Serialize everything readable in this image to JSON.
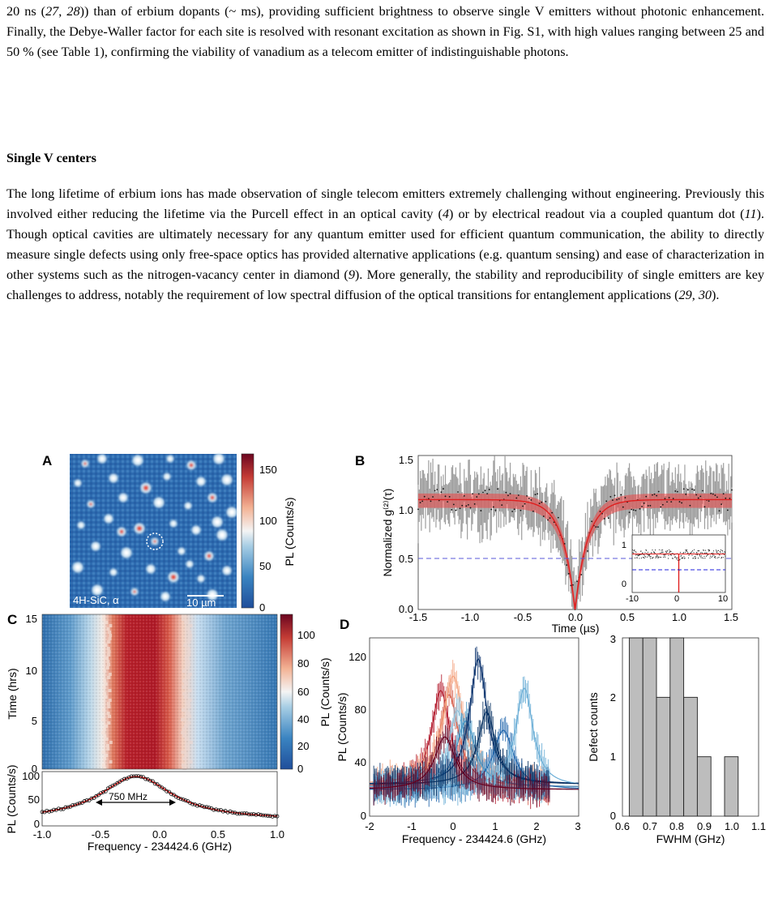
{
  "paragraph1": {
    "lines": [
      "20 ns (",
      "27",
      ", ",
      "28",
      ")) than of erbium dopants (~ ms), providing sufficient brightness to observe single V emitters without photonic enhancement. Finally, the Debye-Waller factor for each site is resolved with resonant excitation as shown in Fig. S1, with high values ranging between 25 and 50 % (see Table 1), confirming the viability of vanadium as a telecom emitter of indistinguishable photons."
    ]
  },
  "section_heading": "Single V centers",
  "paragraph2": {
    "p1": "The long lifetime of erbium ions has made observation of single telecom emitters extremely challenging without engineering. Previously this involved either reducing the lifetime via the Purcell effect in an optical cavity (",
    "c1": "4",
    "p2": ") or by electrical readout via a coupled quantum dot (",
    "c2": "11",
    "p3": "). Though optical cavities are ultimately necessary for any quantum emitter used for efficient quantum communication, the ability to directly measure single defects using only free-space optics has provided alternative applications (e.g. quantum sensing) and ease of characterization in other systems such as the nitrogen-vacancy center in diamond (",
    "c3": "9",
    "p4": "). More generally, the stability and reproducibility of single emitters are key challenges to address, notably the requirement of low spectral diffusion of the optical transitions for entanglement applications (",
    "c4": "29",
    "p5": ", ",
    "c5": "30",
    "p6": ")."
  },
  "figure": {
    "panelA": {
      "label": "A",
      "sample_label": "4H-SiC, α",
      "scalebar": "10 µm",
      "colorbar_ticks": [
        "150",
        "100",
        "50",
        "0"
      ],
      "colorbar_label": "PL (Counts/s)"
    },
    "panelB": {
      "label": "B",
      "ylabel": "Normalized g⁽²⁾(τ)",
      "xlabel": "Time (µs)",
      "xticks": [
        "-1.5",
        "-1.0",
        "-0.5",
        "0.0",
        "0.5",
        "1.0",
        "1.5"
      ],
      "yticks": [
        "0.0",
        "0.5",
        "1.0",
        "1.5"
      ],
      "inset_xticks": [
        "-10",
        "0",
        "10"
      ],
      "inset_yticks": [
        "0",
        "1"
      ]
    },
    "panelC": {
      "label": "C",
      "ylabel_top": "Time (hrs)",
      "yticks_top": [
        "15",
        "10",
        "5",
        "0"
      ],
      "colorbar_ticks": [
        "100",
        "80",
        "60",
        "40",
        "20",
        "0"
      ],
      "colorbar_label": "PL (Counts/s)",
      "ylabel_bottom": "PL (Counts/s)",
      "yticks_bottom": [
        "100",
        "50",
        "0"
      ],
      "xticks": [
        "-1.0",
        "-0.5",
        "0.0",
        "0.5",
        "1.0"
      ],
      "xlabel": "Frequency - 234424.6 (GHz)",
      "linewidth_label": "750 MHz"
    },
    "panelD": {
      "label": "D",
      "ylabel": "PL (Counts/s)",
      "xlabel": "Frequency - 234424.6 (GHz)",
      "xticks": [
        "-2",
        "-1",
        "0",
        "1",
        "2",
        "3"
      ],
      "yticks": [
        "0",
        "40",
        "80",
        "120"
      ]
    },
    "panelHist": {
      "ylabel": "Defect counts",
      "xlabel": "FWHM (GHz)",
      "xticks": [
        "0.6",
        "0.7",
        "0.8",
        "0.9",
        "1.0",
        "1.1"
      ],
      "yticks": [
        "0",
        "1",
        "2",
        "3"
      ]
    }
  },
  "chart_data": [
    {
      "type": "line",
      "name": "B",
      "x_range": [
        -1.5,
        1.5
      ],
      "ylim": [
        0,
        1.5
      ],
      "dip_center": 0.0,
      "dip_min": 0.0,
      "baseline": 1.07,
      "reference_line": 0.5
    },
    {
      "type": "line",
      "name": "C-bottom",
      "x_range": [
        -1.0,
        1.0
      ],
      "ylim": [
        0,
        100
      ],
      "peak_center": -0.2,
      "peak_value": 100,
      "fwhm_GHz": 0.75
    },
    {
      "type": "bar",
      "name": "FWHM histogram",
      "categories": [
        "0.65",
        "0.70",
        "0.75",
        "0.80",
        "0.85",
        "0.90",
        "0.95",
        "1.00"
      ],
      "values": [
        3,
        3,
        2,
        3,
        2,
        1,
        0,
        1
      ],
      "ylim": [
        0,
        3
      ],
      "xlim": [
        0.6,
        1.1
      ]
    }
  ]
}
